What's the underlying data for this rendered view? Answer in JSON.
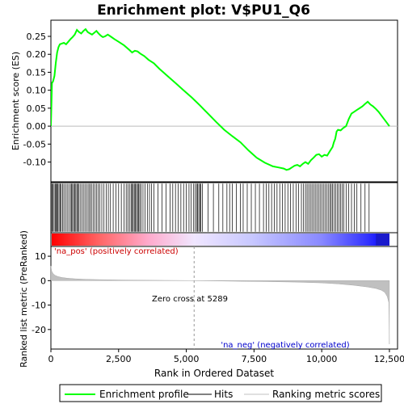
{
  "chart_data": {
    "type": "line",
    "title": "Enrichment plot: V$PU1_Q6",
    "x_range": [
      0,
      12800
    ],
    "x_ticks": [
      0,
      2500,
      5000,
      7500,
      10000,
      12500
    ],
    "x_tick_labels": [
      "0",
      "2,500",
      "5,000",
      "7,500",
      "10,000",
      "12,500"
    ],
    "xlabel": "Rank in Ordered Dataset",
    "top_panel": {
      "ylabel": "Enrichment score (ES)",
      "ylim": [
        -0.155,
        0.295
      ],
      "y_ticks": [
        -0.1,
        -0.05,
        0.0,
        0.05,
        0.1,
        0.15,
        0.2,
        0.25
      ],
      "y_tick_labels": [
        "-0.10",
        "-0.05",
        "0.00",
        "0.05",
        "0.10",
        "0.15",
        "0.20",
        "0.25"
      ],
      "series": {
        "name": "Enrichment profile",
        "color": "#00ff00",
        "x": [
          0,
          40,
          80,
          130,
          180,
          230,
          280,
          330,
          400,
          480,
          560,
          640,
          720,
          800,
          880,
          960,
          1040,
          1120,
          1200,
          1280,
          1360,
          1440,
          1520,
          1600,
          1680,
          1760,
          1840,
          1920,
          2000,
          2100,
          2200,
          2350,
          2500,
          2700,
          2900,
          3000,
          3100,
          3200,
          3300,
          3450,
          3600,
          3800,
          4000,
          4300,
          4600,
          4900,
          5200,
          5500,
          5800,
          6100,
          6400,
          6700,
          7000,
          7300,
          7600,
          7900,
          8200,
          8400,
          8600,
          8700,
          8800,
          8900,
          9000,
          9100,
          9200,
          9300,
          9400,
          9500,
          9600,
          9700,
          9800,
          9900,
          10000,
          10100,
          10200,
          10300,
          10400,
          10450,
          10500,
          10550,
          10600,
          10700,
          10800,
          10900,
          11000,
          11100,
          11200,
          11300,
          11400,
          11500,
          11600,
          11700,
          11800,
          11900,
          12000,
          12100,
          12200,
          12300,
          12400,
          12500
        ],
        "y": [
          0.0,
          0.12,
          0.125,
          0.14,
          0.175,
          0.205,
          0.22,
          0.228,
          0.23,
          0.232,
          0.228,
          0.235,
          0.242,
          0.248,
          0.255,
          0.268,
          0.262,
          0.258,
          0.265,
          0.27,
          0.262,
          0.258,
          0.255,
          0.26,
          0.265,
          0.258,
          0.252,
          0.248,
          0.25,
          0.255,
          0.25,
          0.242,
          0.235,
          0.225,
          0.212,
          0.205,
          0.21,
          0.208,
          0.202,
          0.195,
          0.185,
          0.175,
          0.16,
          0.14,
          0.12,
          0.1,
          0.08,
          0.058,
          0.035,
          0.012,
          -0.01,
          -0.028,
          -0.045,
          -0.068,
          -0.088,
          -0.102,
          -0.112,
          -0.115,
          -0.118,
          -0.122,
          -0.12,
          -0.115,
          -0.11,
          -0.108,
          -0.112,
          -0.105,
          -0.1,
          -0.105,
          -0.095,
          -0.088,
          -0.08,
          -0.078,
          -0.085,
          -0.08,
          -0.082,
          -0.07,
          -0.058,
          -0.045,
          -0.035,
          -0.015,
          -0.01,
          -0.012,
          -0.005,
          0.0,
          0.02,
          0.035,
          0.04,
          0.045,
          0.05,
          0.055,
          0.062,
          0.068,
          0.06,
          0.055,
          0.048,
          0.04,
          0.03,
          0.02,
          0.01,
          0.0
        ]
      }
    },
    "hits": {
      "name": "Hits",
      "color": "#000000",
      "positions": [
        10,
        40,
        80,
        120,
        160,
        200,
        230,
        260,
        300,
        340,
        380,
        430,
        480,
        540,
        600,
        660,
        720,
        760,
        800,
        840,
        880,
        920,
        960,
        1000,
        1040,
        1100,
        1160,
        1220,
        1280,
        1340,
        1400,
        1450,
        1500,
        1560,
        1620,
        1680,
        1740,
        1800,
        1880,
        1960,
        2040,
        2120,
        2200,
        2300,
        2400,
        2500,
        2600,
        2700,
        2780,
        2840,
        2900,
        2960,
        3000,
        3040,
        3080,
        3120,
        3160,
        3200,
        3240,
        3280,
        3330,
        3400,
        3480,
        3560,
        3640,
        3720,
        3800,
        3950,
        4100,
        4250,
        4400,
        4500,
        4600,
        4700,
        4800,
        4900,
        5000,
        5100,
        5180,
        5260,
        5330,
        5380,
        5420,
        5460,
        5500,
        5540,
        5600,
        5800,
        6000,
        6200,
        6350,
        6500,
        6600,
        6700,
        6850,
        7000,
        7100,
        7250,
        7400,
        7550,
        7700,
        7850,
        7950,
        8050,
        8150,
        8250,
        8350,
        8450,
        8550,
        8650,
        8750,
        8850,
        8950,
        9050,
        9150,
        9250,
        9330,
        9400,
        9460,
        9520,
        9580,
        9640,
        9700,
        9760,
        9820,
        9880,
        9940,
        10000,
        10060,
        10120,
        10180,
        10240,
        10300,
        10350,
        10400,
        10460,
        10520,
        10580,
        10640,
        10700,
        10760,
        10820,
        10900,
        11000,
        11100,
        11200,
        11300,
        11450,
        11600,
        11750
      ],
      "ymin_frac": 0.02,
      "ymax_frac": 0.98
    },
    "rank_colorbar": {
      "gradient": [
        {
          "rank": 0,
          "color": "#ff0000"
        },
        {
          "rank": 1800,
          "color": "#ff6666"
        },
        {
          "rank": 3600,
          "color": "#ffaacc"
        },
        {
          "rank": 5289,
          "color": "#f0e6ff"
        },
        {
          "rank": 7400,
          "color": "#c8c8ff"
        },
        {
          "rank": 10000,
          "color": "#8888ff"
        },
        {
          "rank": 11700,
          "color": "#3333ff"
        },
        {
          "rank": 12500,
          "color": "#0000ff"
        }
      ],
      "dark_end_start": 12000
    },
    "bottom_panel": {
      "ylabel": "Ranked list metric (PreRanked)",
      "ylim": [
        -28,
        14
      ],
      "y_ticks": [
        -20,
        -10,
        0,
        10
      ],
      "y_tick_labels": [
        "-20",
        "-10",
        "0",
        "10"
      ],
      "series": {
        "name": "Ranking metric scores",
        "color": "#c0c0c0",
        "x": [
          0,
          10,
          30,
          80,
          150,
          250,
          400,
          600,
          900,
          1300,
          1800,
          2500,
          3300,
          4200,
          5000,
          5289,
          6000,
          7000,
          8000,
          9000,
          10000,
          10600,
          11200,
          11700,
          12000,
          12200,
          12330,
          12420,
          12480,
          12500
        ],
        "y": [
          6.0,
          5.2,
          3.8,
          2.9,
          2.2,
          1.7,
          1.3,
          1.0,
          0.75,
          0.55,
          0.4,
          0.28,
          0.18,
          0.1,
          0.03,
          0.0,
          -0.1,
          -0.25,
          -0.4,
          -0.6,
          -0.9,
          -1.3,
          -1.9,
          -2.6,
          -3.2,
          -3.9,
          -4.8,
          -6.5,
          -9.0,
          -26.0
        ]
      },
      "zero_cross_rank": 5289,
      "annotations": {
        "pos": "'na_pos' (positively correlated)",
        "neg": "'na_neg' (negatively correlated)",
        "zero_cross": "Zero cross at 5289"
      },
      "annotation_colors": {
        "pos": "#cc0000",
        "neg": "#0000cc"
      }
    },
    "legend": {
      "position": "bottom",
      "entries": [
        {
          "label": "Enrichment profile",
          "color": "#00ff00"
        },
        {
          "label": "Hits",
          "color": "#000000"
        },
        {
          "label": "Ranking metric scores",
          "color": "#c0c0c0"
        }
      ]
    }
  }
}
